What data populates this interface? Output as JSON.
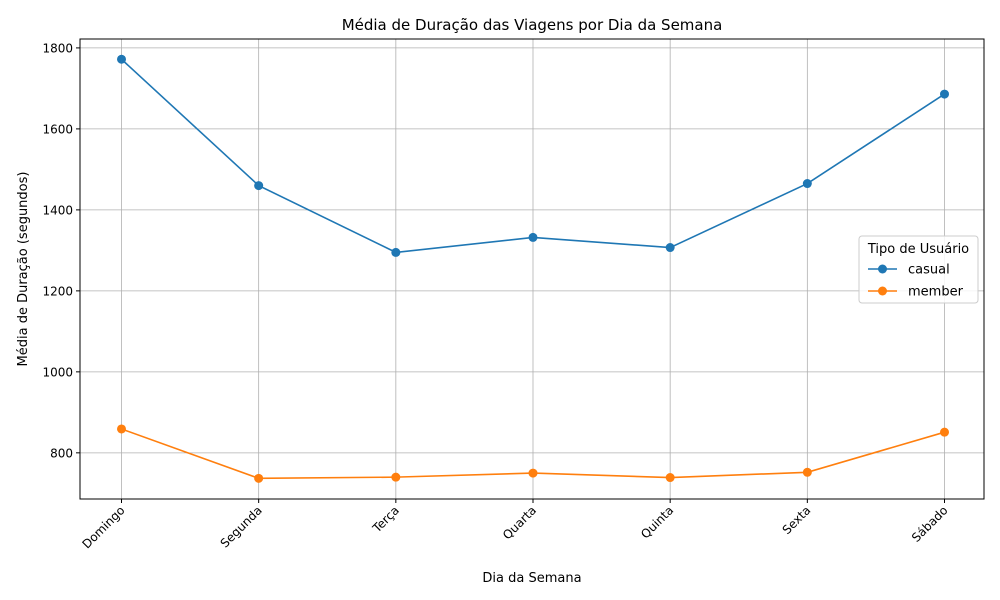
{
  "chart_data": {
    "type": "line",
    "title": "Média de Duração das Viagens por Dia da Semana",
    "xlabel": "Dia da Semana",
    "ylabel": "Média de Duração (segundos)",
    "categories": [
      "Domingo",
      "Segunda",
      "Terça",
      "Quarta",
      "Quinta",
      "Sexta",
      "Sábado"
    ],
    "ylim": [
      686,
      1822
    ],
    "yticks": [
      800,
      1000,
      1200,
      1400,
      1600,
      1800
    ],
    "grid": true,
    "legend": {
      "title": "Tipo de Usuário",
      "placement": "center-right"
    },
    "series": [
      {
        "name": "casual",
        "color": "#1f77b4",
        "values": [
          1772,
          1460,
          1295,
          1332,
          1307,
          1465,
          1686
        ]
      },
      {
        "name": "member",
        "color": "#ff7f0e",
        "values": [
          859,
          737,
          740,
          750,
          739,
          752,
          851
        ]
      }
    ]
  }
}
